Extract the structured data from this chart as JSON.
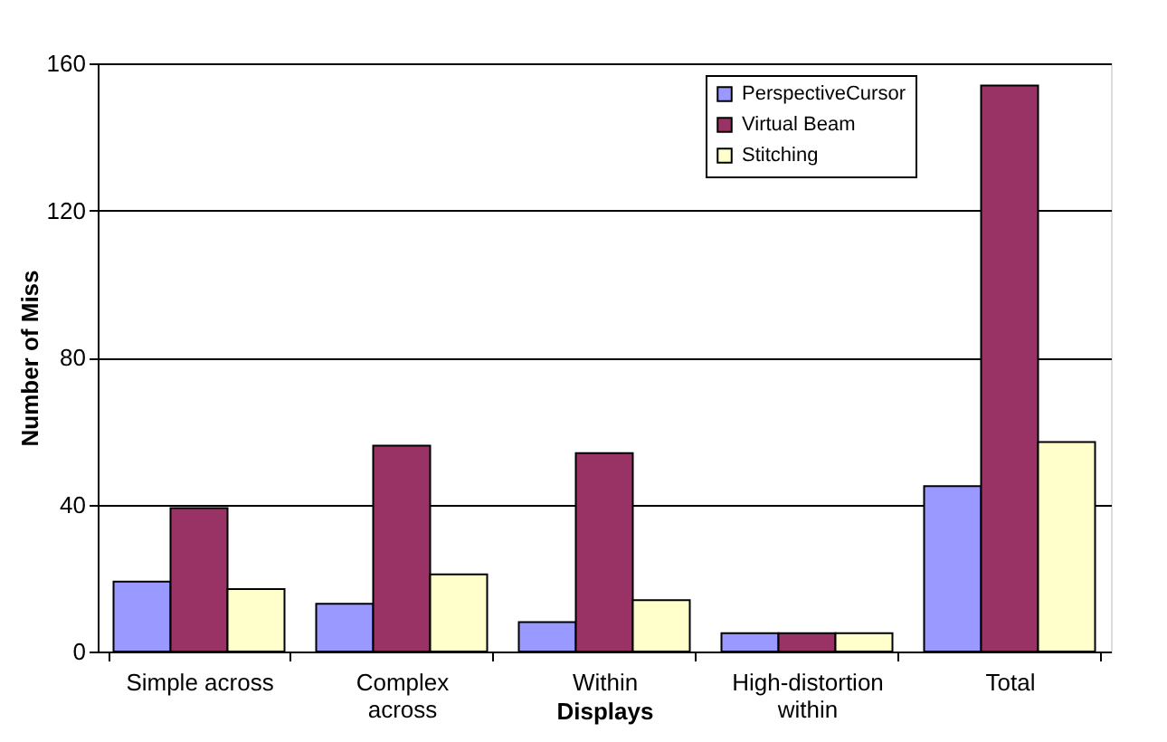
{
  "chart_data": {
    "type": "bar",
    "xlabel": "Displays",
    "ylabel": "Number of Miss",
    "categories": [
      "Simple across",
      "Complex\nacross",
      "Within",
      "High-distortion\nwithin",
      "Total"
    ],
    "series": [
      {
        "name": "PerspectiveCursor",
        "color": "#9999ff",
        "values": [
          19,
          13,
          8,
          5,
          45
        ]
      },
      {
        "name": "Virtual Beam",
        "color": "#993366",
        "values": [
          39,
          56,
          54,
          5,
          154
        ]
      },
      {
        "name": "Stitching",
        "color": "#ffffcc",
        "values": [
          17,
          21,
          14,
          5,
          57
        ]
      }
    ],
    "ylim": [
      0,
      160
    ],
    "yticks": [
      0,
      40,
      80,
      120,
      160
    ],
    "grid": "y",
    "legend": "top right"
  }
}
